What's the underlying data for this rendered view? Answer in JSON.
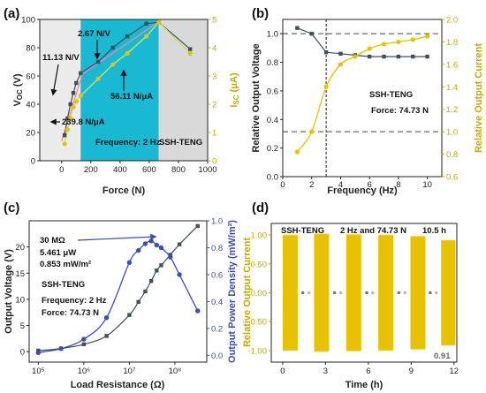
{
  "colors": {
    "gray_series": "#3d4f5c",
    "yellow_series": "#e8c200",
    "blue_series": "#3a4fb3",
    "cyan_band": "#19b8d3",
    "gray_band": "#d9d9d9",
    "light_band": "#ececec"
  },
  "chart_data": [
    {
      "panel_label": "(a)",
      "type": "line",
      "xlabel": "Force (N)",
      "ylabel_main": "V",
      "ylabel_sub": "OC",
      "ylabel_unit": " (V)",
      "y2label_main": "I",
      "y2label_sub": "SC",
      "y2label_unit": " (μA)",
      "xlim": [
        -150,
        1000
      ],
      "ylim": [
        0,
        100
      ],
      "y2lim": [
        0,
        5
      ],
      "xticks": [
        0,
        200,
        400,
        600,
        800,
        1000
      ],
      "yticks": [
        0,
        20,
        40,
        60,
        80,
        100
      ],
      "y2ticks": [
        0,
        1,
        2,
        3,
        4,
        5
      ],
      "bands": [
        {
          "x0": -150,
          "x1": 130,
          "color": "light"
        },
        {
          "x0": 130,
          "x1": 665,
          "color": "cyan"
        },
        {
          "x0": 665,
          "x1": 1000,
          "color": "gray"
        }
      ],
      "series": [
        {
          "axis": "left",
          "x": [
            20,
            40,
            60,
            80,
            100,
            130,
            250,
            350,
            450,
            580,
            665,
            880
          ],
          "y": [
            18,
            30,
            40,
            48,
            55,
            62,
            70,
            80,
            88,
            97,
            98,
            79
          ]
        },
        {
          "axis": "right",
          "x": [
            20,
            40,
            60,
            80,
            100,
            130,
            250,
            350,
            450,
            580,
            665,
            880
          ],
          "y": [
            0.6,
            1.1,
            1.5,
            1.9,
            2.1,
            2.3,
            2.9,
            3.4,
            3.8,
            4.4,
            4.9,
            3.8
          ]
        }
      ],
      "fits": [
        {
          "x": [
            0,
            150
          ],
          "y": [
            14,
            64
          ]
        },
        {
          "x": [
            150,
            660
          ],
          "y": [
            62,
            98
          ]
        }
      ],
      "annotations": [
        {
          "id": "a1",
          "text": "11.13 N/V"
        },
        {
          "id": "a2",
          "text": "2.67 N/V"
        },
        {
          "id": "a3",
          "text": "56.11 N/μA"
        },
        {
          "id": "a4",
          "text": "239.8 N/μA"
        },
        {
          "id": "a5",
          "text": "Frequency: 2 Hz"
        },
        {
          "id": "a6",
          "text": "SSH-TENG"
        }
      ]
    },
    {
      "panel_label": "(b)",
      "type": "line",
      "xlabel": "Frequency (Hz)",
      "ylabel": "Relative Output Voltage",
      "y2label": "Relative Output Current",
      "xlim": [
        0,
        11
      ],
      "ylim": [
        0.0,
        1.1
      ],
      "y2lim": [
        0.6,
        2.0
      ],
      "xticks": [
        0,
        2,
        4,
        6,
        8,
        10
      ],
      "yticks": [
        "0.0",
        "0.2",
        "0.4",
        "0.6",
        "0.8",
        "1.0"
      ],
      "y2ticks": [
        "0.6",
        "0.8",
        "1.0",
        "1.2",
        "1.4",
        "1.6",
        "1.8",
        "2.0"
      ],
      "series": [
        {
          "axis": "left",
          "x": [
            1,
            2,
            3,
            4,
            5,
            6,
            7,
            8,
            9,
            10
          ],
          "y": [
            1.04,
            1.0,
            0.87,
            0.86,
            0.85,
            0.84,
            0.84,
            0.84,
            0.84,
            0.84
          ]
        },
        {
          "axis": "right",
          "x": [
            1,
            2,
            3,
            4,
            5,
            6,
            7,
            8,
            9,
            10
          ],
          "y": [
            0.82,
            1.0,
            1.4,
            1.6,
            1.67,
            1.74,
            1.78,
            1.8,
            1.82,
            1.85
          ]
        }
      ],
      "ref_lines": {
        "vertical_x": 3,
        "h_left_y": 1.0,
        "h_right_y": 1.0
      },
      "annotations": [
        {
          "id": "b1",
          "text": "SSH-TENG"
        },
        {
          "id": "b2",
          "text": "Force: 74.73 N"
        }
      ]
    },
    {
      "panel_label": "(c)",
      "type": "line",
      "xscale": "log",
      "xlabel": "Load Resistance  (Ω)",
      "ylabel": "Output Voltage (V)",
      "y2label": "Output Power Density (mW/m²)",
      "xlim_log": [
        4.8,
        8.7
      ],
      "ylim": [
        -2,
        25
      ],
      "y2lim": [
        -0.05,
        1.0
      ],
      "xticks": [
        {
          "exp": 5,
          "label": "10⁵"
        },
        {
          "exp": 6,
          "label": "10⁶"
        },
        {
          "exp": 7,
          "label": "10⁷"
        },
        {
          "exp": 8,
          "label": "10⁸"
        }
      ],
      "yticks": [
        0,
        5,
        10,
        15,
        20
      ],
      "y2ticks": [
        "0.0",
        "0.2",
        "0.4",
        "0.6",
        "0.8",
        "1.0"
      ],
      "series": [
        {
          "axis": "left",
          "x_log": [
            5.0,
            5.5,
            6.0,
            6.5,
            7.0,
            7.2,
            7.35,
            7.48,
            7.6,
            7.7,
            7.9,
            8.1,
            8.5
          ],
          "y": [
            0.2,
            0.6,
            1.4,
            3.0,
            7.0,
            9.5,
            11.5,
            13.5,
            15.5,
            16.5,
            18.5,
            20.5,
            24.0
          ]
        },
        {
          "axis": "right",
          "x_log": [
            5.0,
            5.5,
            6.0,
            6.5,
            7.0,
            7.2,
            7.35,
            7.48,
            7.6,
            7.7,
            7.9,
            8.1,
            8.5
          ],
          "y": [
            0.02,
            0.05,
            0.12,
            0.28,
            0.69,
            0.78,
            0.83,
            0.85,
            0.82,
            0.8,
            0.73,
            0.6,
            0.33
          ]
        }
      ],
      "annotations": [
        {
          "id": "c1",
          "text": "30 MΩ"
        },
        {
          "id": "c2",
          "text": "5.461 μW"
        },
        {
          "id": "c3",
          "text": "0.853 mW/m²"
        },
        {
          "id": "c4",
          "text": "SSH-TENG"
        },
        {
          "id": "c5",
          "text": "Frequency: 2 Hz"
        },
        {
          "id": "c6",
          "text": "Force: 74.73 N"
        }
      ]
    },
    {
      "panel_label": "(d)",
      "type": "line",
      "xlabel": "Time (h)",
      "ylabel": "Relative Output Current",
      "xlim": [
        -0.8,
        12.2
      ],
      "ylim": [
        -1.2,
        1.2
      ],
      "xticks": [
        0,
        3,
        6,
        9,
        12
      ],
      "yticks": [
        "-1.00",
        "-0.50",
        "0.00",
        "0.50",
        "1.00"
      ],
      "bursts": [
        {
          "t0": 0.0,
          "t1": 1.05
        },
        {
          "t0": 2.2,
          "t1": 3.25
        },
        {
          "t0": 4.45,
          "t1": 5.5
        },
        {
          "t0": 6.7,
          "t1": 7.75
        },
        {
          "t0": 8.95,
          "t1": 10.0
        },
        {
          "t0": 11.1,
          "t1": 12.1
        }
      ],
      "burst_amplitude": [
        1.0,
        1.02,
        1.01,
        1.0,
        0.98,
        0.91
      ],
      "annotations": [
        {
          "id": "d1",
          "text": "SSH-TENG"
        },
        {
          "id": "d2",
          "text": "2 Hz and 74.73 N"
        },
        {
          "id": "d3",
          "text": "10.5 h"
        },
        {
          "id": "d4",
          "text": "0.91"
        }
      ]
    }
  ]
}
